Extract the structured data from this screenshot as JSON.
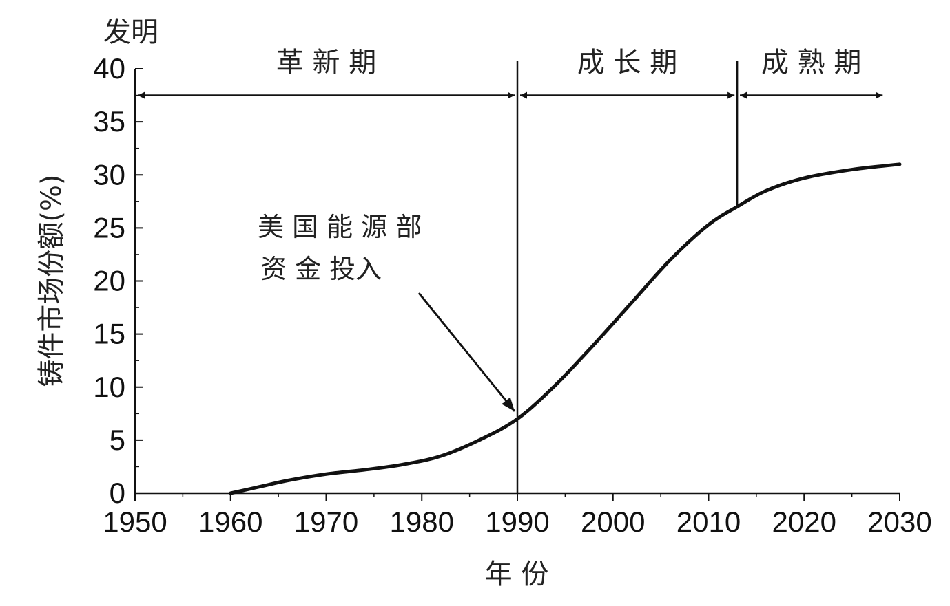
{
  "chart_data": {
    "type": "line",
    "title": "",
    "corner_label": "发明",
    "xlabel": "年 份",
    "ylabel": "铸件市场份额(%)",
    "xlim": [
      1950,
      2030
    ],
    "ylim": [
      0,
      40
    ],
    "x_ticks": [
      1950,
      1960,
      1970,
      1980,
      1990,
      2000,
      2010,
      2020,
      2030
    ],
    "y_ticks": [
      0,
      5,
      10,
      15,
      20,
      25,
      30,
      35,
      40
    ],
    "grid": false,
    "series": [
      {
        "x": [
          1960,
          1963,
          1966,
          1970,
          1974,
          1978,
          1982,
          1986,
          1990,
          1994,
          1998,
          2002,
          2006,
          2010,
          2013,
          2016,
          2020,
          2025,
          2030
        ],
        "y": [
          0,
          0.6,
          1.2,
          1.8,
          2.2,
          2.7,
          3.5,
          5.0,
          7.0,
          10.2,
          14.0,
          18.0,
          22.0,
          25.3,
          27.0,
          28.5,
          29.7,
          30.5,
          31.0
        ]
      }
    ],
    "dividers": [
      {
        "x": 1990,
        "y_from": 0,
        "y_to": 40
      },
      {
        "x": 2013,
        "y_from": 27,
        "y_to": 40
      }
    ],
    "phases": [
      {
        "label": "革 新 期",
        "x_from": 1950,
        "x_to": 1990,
        "y": 37.5
      },
      {
        "label": "成 长 期",
        "x_from": 1990,
        "x_to": 2013,
        "y": 37.5
      },
      {
        "label": "成 熟 期",
        "x_from": 2013,
        "x_to": 2028.5,
        "y": 37.5
      }
    ],
    "annotation": {
      "lines": [
        "美 国 能 源 部",
        "资 金 投入"
      ],
      "arrow_to_x": 1990,
      "arrow_to_y": 7.2
    }
  }
}
